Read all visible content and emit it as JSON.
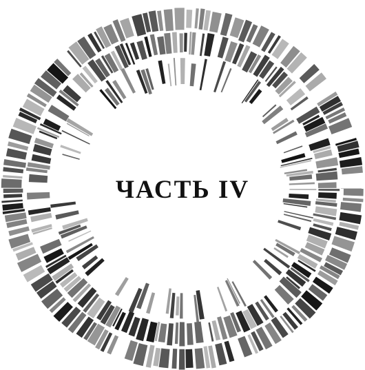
{
  "title": "ЧАСТЬ IV"
}
